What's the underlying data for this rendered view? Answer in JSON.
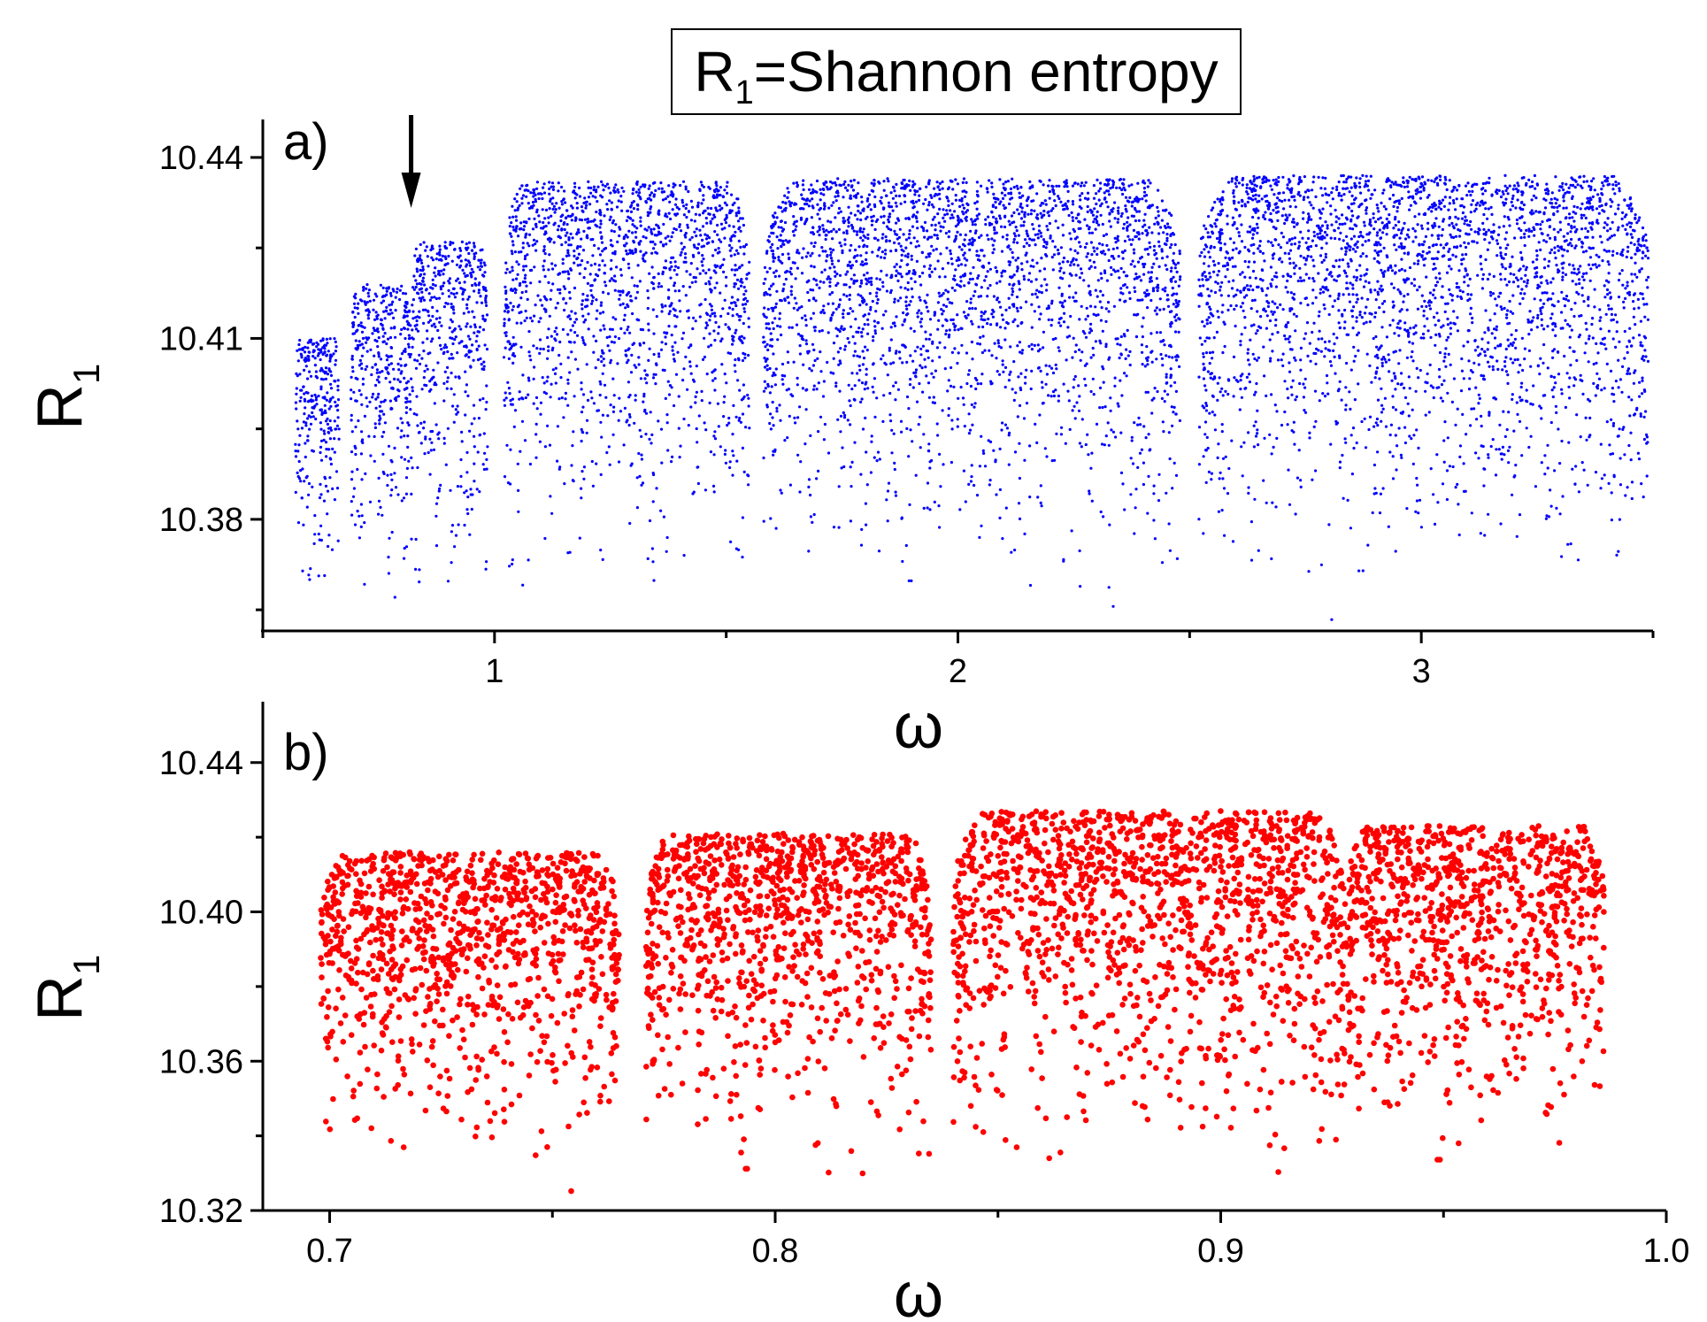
{
  "title": {
    "symbol": "R",
    "subscript": "1",
    "text": "=Shannon entropy"
  },
  "chart_data": [
    {
      "type": "scatter",
      "panel_label": "a)",
      "color": "#0000ff",
      "xlabel": "ω",
      "ylabel": "R",
      "ylabel_subscript": "1",
      "xlim": [
        0.5,
        3.5
      ],
      "ylim": [
        10.3615,
        10.4463
      ],
      "xticks": [
        1,
        2,
        3
      ],
      "xtick_labels": [
        "1",
        "2",
        "3"
      ],
      "yticks": [
        10.38,
        10.41,
        10.44
      ],
      "ytick_labels": [
        "10.38",
        "10.41",
        "10.44"
      ],
      "bands": [
        {
          "x0": 0.57,
          "x1": 0.665,
          "top": 10.41
        },
        {
          "x0": 0.69,
          "x1": 0.82,
          "top": 10.419
        },
        {
          "x0": 0.82,
          "x1": 0.985,
          "top": 10.426
        },
        {
          "x0": 1.02,
          "x1": 1.55,
          "top": 10.436
        },
        {
          "x0": 1.58,
          "x1": 2.48,
          "top": 10.4365
        },
        {
          "x0": 2.52,
          "x1": 3.49,
          "top": 10.437
        }
      ],
      "dips": [
        1.02,
        1.16,
        1.29,
        1.58,
        1.8,
        2.03,
        2.49,
        2.91,
        3.26
      ],
      "annotations": [
        {
          "type": "arrow",
          "x": 0.82,
          "direction": "down"
        }
      ]
    },
    {
      "type": "scatter",
      "panel_label": "b)",
      "color": "#ff0000",
      "xlabel": "ω",
      "ylabel": "R",
      "ylabel_subscript": "1",
      "xlim": [
        0.685,
        1.0
      ],
      "ylim": [
        10.32,
        10.4563
      ],
      "xticks": [
        0.7,
        0.8,
        0.9,
        1.0
      ],
      "xtick_labels": [
        "0.7",
        "0.8",
        "0.9",
        "1.0"
      ],
      "yticks": [
        10.32,
        10.36,
        10.4,
        10.44
      ],
      "ytick_labels": [
        "10.32",
        "10.36",
        "10.40",
        "10.44"
      ],
      "bands": [
        {
          "x0": 0.698,
          "x1": 0.765,
          "top": 10.416
        },
        {
          "x0": 0.771,
          "x1": 0.835,
          "top": 10.421
        },
        {
          "x0": 0.84,
          "x1": 0.928,
          "top": 10.427
        },
        {
          "x0": 0.928,
          "x1": 0.986,
          "top": 10.423
        }
      ],
      "dips": [
        0.711,
        0.73,
        0.765,
        0.771,
        0.835,
        0.84,
        0.892,
        0.928,
        0.96,
        0.976
      ]
    }
  ]
}
